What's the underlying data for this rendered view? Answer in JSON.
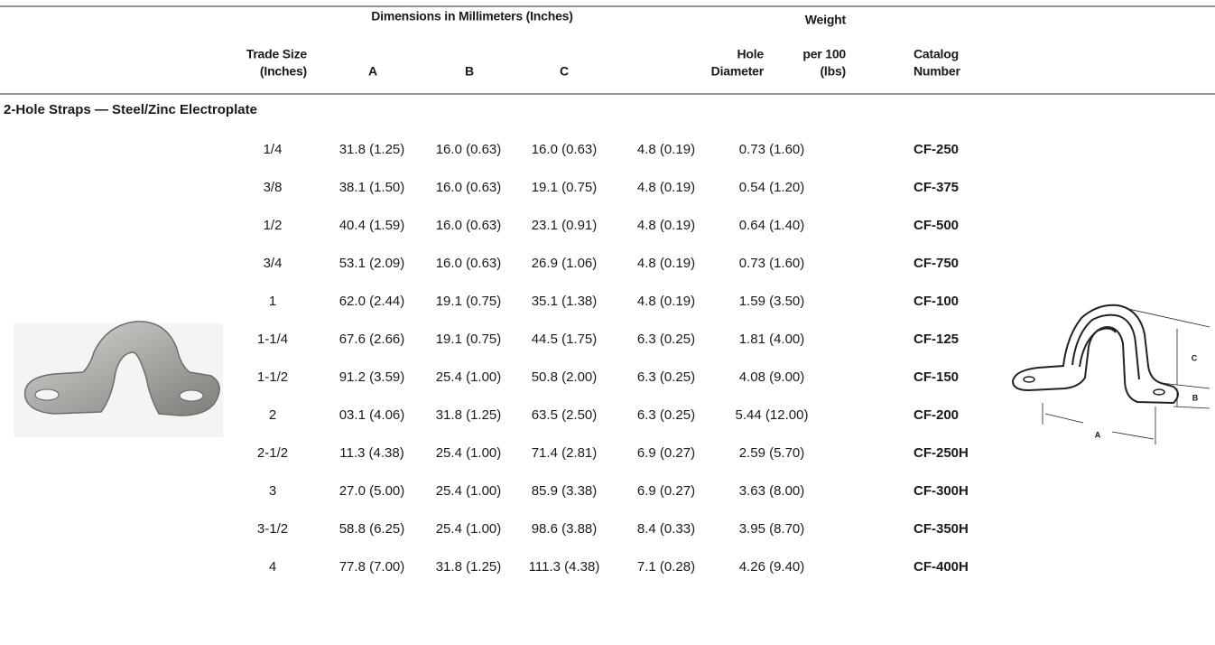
{
  "header": {
    "group_title": "Dimensions in Millimeters (Inches)",
    "columns": [
      [
        "Trade Size",
        "(Inches)"
      ],
      [
        "A"
      ],
      [
        "B"
      ],
      [
        "C"
      ],
      [
        "Hole",
        "Diameter"
      ],
      [
        "Weight",
        "per 100",
        "(lbs)"
      ],
      [
        "Catalog",
        "Number"
      ]
    ]
  },
  "section_title": "2-Hole Straps — Steel/Zinc Electroplate",
  "table": {
    "rows": [
      [
        "1/4",
        "31.8 (1.25)",
        "16.0 (0.63)",
        "16.0 (0.63)",
        "4.8 (0.19)",
        "0.73 (1.60)",
        "CF-250"
      ],
      [
        "3/8",
        "38.1 (1.50)",
        "16.0 (0.63)",
        "19.1 (0.75)",
        "4.8 (0.19)",
        "0.54 (1.20)",
        "CF-375"
      ],
      [
        "1/2",
        "40.4 (1.59)",
        "16.0 (0.63)",
        "23.1 (0.91)",
        "4.8 (0.19)",
        "0.64 (1.40)",
        "CF-500"
      ],
      [
        "3/4",
        "53.1 (2.09)",
        "16.0 (0.63)",
        "26.9 (1.06)",
        "4.8 (0.19)",
        "0.73 (1.60)",
        "CF-750"
      ],
      [
        "1",
        "62.0 (2.44)",
        "19.1 (0.75)",
        "35.1 (1.38)",
        "4.8 (0.19)",
        "1.59 (3.50)",
        "CF-100"
      ],
      [
        "1-1/4",
        "67.6 (2.66)",
        "19.1 (0.75)",
        "44.5 (1.75)",
        "6.3 (0.25)",
        "1.81 (4.00)",
        "CF-125"
      ],
      [
        "1-1/2",
        "91.2 (3.59)",
        "25.4 (1.00)",
        "50.8 (2.00)",
        "6.3 (0.25)",
        "4.08 (9.00)",
        "CF-150"
      ],
      [
        "2",
        "03.1 (4.06)",
        "31.8 (1.25)",
        "63.5 (2.50)",
        "6.3 (0.25)",
        "5.44 (12.00)",
        "CF-200"
      ],
      [
        "2-1/2",
        "11.3 (4.38)",
        "25.4 (1.00)",
        "71.4 (2.81)",
        "6.9 (0.27)",
        "2.59 (5.70)",
        "CF-250H"
      ],
      [
        "3",
        "27.0 (5.00)",
        "25.4 (1.00)",
        "85.9 (3.38)",
        "6.9 (0.27)",
        "3.63 (8.00)",
        "CF-300H"
      ],
      [
        "3-1/2",
        "58.8 (6.25)",
        "25.4 (1.00)",
        "98.6 (3.88)",
        "8.4 (0.33)",
        "3.95 (8.70)",
        "CF-350H"
      ],
      [
        "4",
        "77.8 (7.00)",
        "31.8 (1.25)",
        "111.3 (4.38)",
        "7.1 (0.28)",
        "4.26 (9.40)",
        "CF-400H"
      ]
    ]
  },
  "diagram": {
    "labels": [
      "C",
      "B",
      "A"
    ]
  }
}
